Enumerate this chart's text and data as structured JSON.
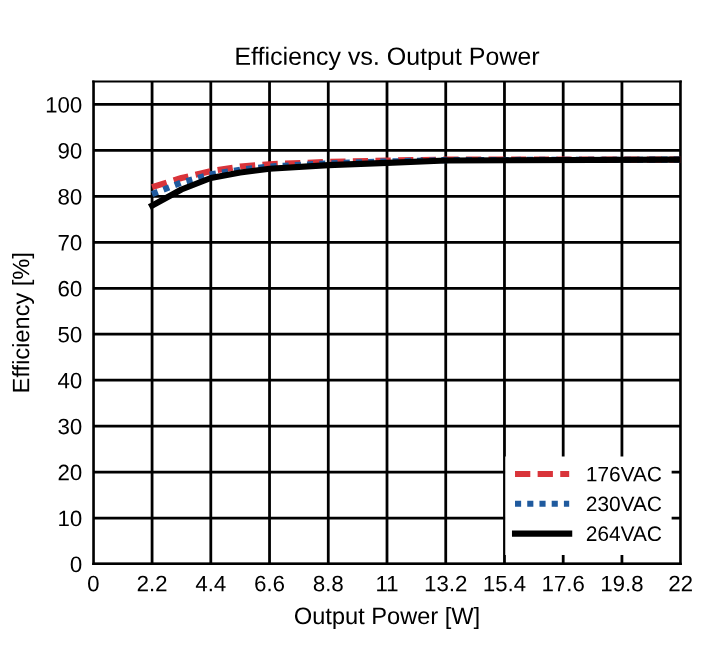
{
  "chart_data": {
    "type": "line",
    "title": "Efficiency vs. Output Power",
    "xlabel": "Output Power [W]",
    "ylabel": "Efficiency [%]",
    "xlim": [
      0,
      22
    ],
    "xticks": [
      0,
      2.2,
      4.4,
      6.6,
      8.8,
      11,
      13.2,
      15.4,
      17.6,
      19.8,
      22
    ],
    "ylim": [
      0,
      105
    ],
    "yticks": [
      0,
      10,
      20,
      30,
      40,
      50,
      60,
      70,
      80,
      90,
      100
    ],
    "grid": true,
    "legend": "bottom right",
    "series": [
      {
        "name": "176VAC",
        "color": "#d9343a",
        "line_style": "dashed",
        "x": [
          2.2,
          3.3,
          4.4,
          5.5,
          6.6,
          8.8,
          11,
          13.2,
          22
        ],
        "values": [
          82,
          84,
          85.5,
          86.5,
          87,
          87.5,
          87.8,
          88,
          88
        ]
      },
      {
        "name": "230VAC",
        "color": "#1f5a9e",
        "line_style": "dotted",
        "x": [
          2.2,
          3.3,
          4.4,
          5.5,
          6.6,
          8.8,
          11,
          13.2,
          22
        ],
        "values": [
          80.5,
          83,
          84.8,
          85.8,
          86.5,
          87.2,
          87.6,
          87.9,
          88
        ]
      },
      {
        "name": "264VAC",
        "color": "#000000",
        "line_style": "solid",
        "x": [
          2.2,
          3.3,
          4.4,
          5.5,
          6.6,
          8.8,
          11,
          13.2,
          22
        ],
        "values": [
          78,
          81.5,
          84,
          85.2,
          86,
          86.8,
          87.3,
          87.8,
          88
        ]
      }
    ]
  }
}
